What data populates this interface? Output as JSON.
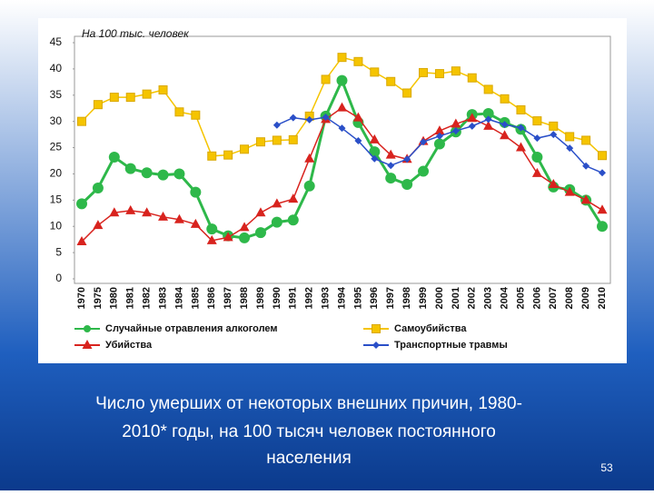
{
  "chart_data": {
    "type": "line",
    "subtitle": "На 100 тыс. человек",
    "categories": [
      "1970",
      "1975",
      "1980",
      "1981",
      "1982",
      "1983",
      "1984",
      "1985",
      "1986",
      "1987",
      "1988",
      "1989",
      "1990",
      "1991",
      "1992",
      "1993",
      "1994",
      "1995",
      "1996",
      "1997",
      "1998",
      "1999",
      "2000",
      "2001",
      "2002",
      "2003",
      "2004",
      "2005",
      "2006",
      "2007",
      "2008",
      "2009",
      "2010"
    ],
    "series": [
      {
        "name": "Случайные отравления алкоголем",
        "color": "#2eb84a",
        "marker": "circle",
        "values": [
          14.3,
          17.3,
          23.2,
          21,
          20.2,
          19.8,
          20,
          16.5,
          9.5,
          8.2,
          7.8,
          8.8,
          10.8,
          11.2,
          17.7,
          31,
          37.8,
          29.8,
          24.2,
          19.2,
          18,
          20.5,
          25.7,
          28,
          31.3,
          31.5,
          29.8,
          28.5,
          23.2,
          17.5,
          17,
          15,
          10
        ]
      },
      {
        "name": "Самоубийства",
        "color": "#f5c400",
        "marker": "square",
        "values": [
          30,
          33.2,
          34.6,
          34.6,
          35.2,
          36,
          31.8,
          31.2,
          23.4,
          23.6,
          24.7,
          26.1,
          26.4,
          26.5,
          31,
          38,
          42.2,
          41.4,
          39.4,
          37.6,
          35.4,
          39.3,
          39.1,
          39.6,
          38.3,
          36.1,
          34.3,
          32.2,
          30.1,
          29.1,
          27.1,
          26.4,
          23.5
        ]
      },
      {
        "name": "Убийства",
        "color": "#d8231e",
        "marker": "triangle",
        "values": [
          7.1,
          10.2,
          12.6,
          13,
          12.6,
          11.8,
          11.3,
          10.4,
          7.3,
          7.9,
          9.8,
          12.6,
          14.3,
          15.2,
          22.9,
          30.4,
          32.6,
          30.7,
          26.5,
          23.6,
          22.8,
          26.2,
          28.2,
          29.5,
          30.6,
          29.1,
          27.3,
          25,
          20.1,
          18,
          16.5,
          15,
          13.1
        ]
      },
      {
        "name": "Транспортные травмы",
        "color": "#2a4fc8",
        "marker": "diamond",
        "values": [
          null,
          null,
          null,
          null,
          null,
          null,
          null,
          null,
          null,
          null,
          null,
          null,
          29.3,
          30.7,
          30.3,
          30.8,
          28.7,
          26.3,
          22.9,
          21.6,
          22.8,
          26.1,
          27.2,
          28.2,
          29.1,
          30.4,
          29.4,
          28.8,
          26.8,
          27.5,
          24.9,
          21.5,
          20.2
        ]
      }
    ],
    "ylim": [
      0,
      45
    ],
    "yticks": [
      0,
      5,
      10,
      15,
      20,
      25,
      30,
      35,
      40,
      45
    ],
    "grid": false
  },
  "caption": [
    "Число умерших от некоторых внешних причин, 1980-",
    "2010* годы, на 100 тысяч человек постоянного",
    "населения"
  ],
  "page_number": "53"
}
